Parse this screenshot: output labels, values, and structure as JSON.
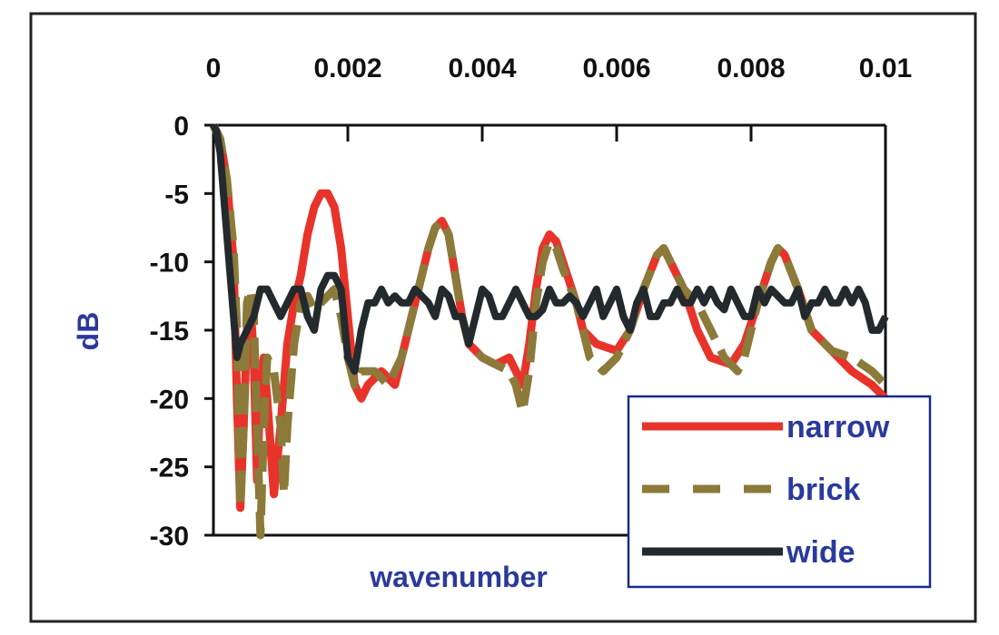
{
  "chart_data": {
    "type": "line",
    "title": "",
    "xlabel": "wavenumber",
    "ylabel": "dB",
    "xlim": [
      0,
      0.01
    ],
    "ylim": [
      -30,
      0
    ],
    "x_ticks": [
      "0",
      "0.002",
      "0.004",
      "0.006",
      "0.008",
      "0.01"
    ],
    "y_ticks": [
      "0",
      "-5",
      "-10",
      "-15",
      "-20",
      "-25",
      "-30"
    ],
    "x_axis_position": "top",
    "grid": false,
    "legend_position": "bottom-right",
    "colors": {
      "narrow": "#e8332a",
      "brick": "#8c7a3a",
      "wide": "#232a2e",
      "text": "#2a3a9c",
      "frame": "#1a2a8c"
    },
    "series": [
      {
        "name": "narrow",
        "style": "solid",
        "points": [
          [
            0,
            0
          ],
          [
            0.0001,
            -1
          ],
          [
            0.0002,
            -4
          ],
          [
            0.0003,
            -10
          ],
          [
            0.00035,
            -20
          ],
          [
            0.0004,
            -28
          ],
          [
            0.00045,
            -22
          ],
          [
            0.0005,
            -15
          ],
          [
            0.00055,
            -13
          ],
          [
            0.0006,
            -17
          ],
          [
            0.00065,
            -26
          ],
          [
            0.0007,
            -19
          ],
          [
            0.00075,
            -17
          ],
          [
            0.0008,
            -20
          ],
          [
            0.0009,
            -27
          ],
          [
            0.001,
            -22
          ],
          [
            0.0011,
            -16
          ],
          [
            0.0012,
            -13
          ],
          [
            0.0013,
            -11
          ],
          [
            0.0014,
            -8
          ],
          [
            0.0015,
            -6
          ],
          [
            0.0016,
            -5
          ],
          [
            0.0017,
            -5
          ],
          [
            0.0018,
            -6
          ],
          [
            0.0019,
            -9
          ],
          [
            0.002,
            -14
          ],
          [
            0.0021,
            -19
          ],
          [
            0.0022,
            -20
          ],
          [
            0.0023,
            -19
          ],
          [
            0.0025,
            -18
          ],
          [
            0.0027,
            -19
          ],
          [
            0.0028,
            -17
          ],
          [
            0.003,
            -13
          ],
          [
            0.0032,
            -9
          ],
          [
            0.0033,
            -7.5
          ],
          [
            0.0034,
            -7
          ],
          [
            0.0035,
            -8
          ],
          [
            0.0036,
            -11
          ],
          [
            0.0037,
            -14
          ],
          [
            0.0038,
            -16
          ],
          [
            0.004,
            -17
          ],
          [
            0.0042,
            -17.5
          ],
          [
            0.0044,
            -17
          ],
          [
            0.0045,
            -18
          ],
          [
            0.0046,
            -19
          ],
          [
            0.0047,
            -16
          ],
          [
            0.0048,
            -12
          ],
          [
            0.0049,
            -9
          ],
          [
            0.005,
            -8
          ],
          [
            0.0051,
            -8.5
          ],
          [
            0.0052,
            -10
          ],
          [
            0.0054,
            -13
          ],
          [
            0.0055,
            -15
          ],
          [
            0.0057,
            -16
          ],
          [
            0.006,
            -16.5
          ],
          [
            0.0062,
            -15
          ],
          [
            0.0064,
            -12
          ],
          [
            0.0066,
            -9.5
          ],
          [
            0.0067,
            -9
          ],
          [
            0.0068,
            -10
          ],
          [
            0.007,
            -12
          ],
          [
            0.0072,
            -15
          ],
          [
            0.0074,
            -17
          ],
          [
            0.0077,
            -17.5
          ],
          [
            0.0079,
            -16
          ],
          [
            0.0081,
            -13
          ],
          [
            0.0083,
            -10
          ],
          [
            0.0084,
            -9
          ],
          [
            0.0085,
            -9.5
          ],
          [
            0.0087,
            -12
          ],
          [
            0.0089,
            -15
          ],
          [
            0.0092,
            -16.5
          ],
          [
            0.0095,
            -18
          ],
          [
            0.0098,
            -19
          ],
          [
            0.01,
            -20
          ]
        ]
      },
      {
        "name": "brick",
        "style": "dashed",
        "points": [
          [
            0,
            0
          ],
          [
            0.0001,
            -1
          ],
          [
            0.0002,
            -4
          ],
          [
            0.0003,
            -9
          ],
          [
            0.00035,
            -15
          ],
          [
            0.0004,
            -28
          ],
          [
            0.00045,
            -22
          ],
          [
            0.0005,
            -13
          ],
          [
            0.00055,
            -12
          ],
          [
            0.0006,
            -14
          ],
          [
            0.00065,
            -22
          ],
          [
            0.0007,
            -30
          ],
          [
            0.00075,
            -22
          ],
          [
            0.0008,
            -17
          ],
          [
            0.0009,
            -18
          ],
          [
            0.001,
            -22
          ],
          [
            0.00105,
            -27
          ],
          [
            0.0011,
            -22
          ],
          [
            0.0012,
            -16
          ],
          [
            0.0013,
            -13
          ],
          [
            0.0014,
            -12.5
          ],
          [
            0.0015,
            -13.5
          ],
          [
            0.0016,
            -13
          ],
          [
            0.0018,
            -12
          ],
          [
            0.0019,
            -14
          ],
          [
            0.002,
            -17
          ],
          [
            0.0021,
            -19
          ],
          [
            0.0022,
            -18
          ],
          [
            0.0024,
            -18
          ],
          [
            0.0026,
            -19
          ],
          [
            0.0028,
            -17
          ],
          [
            0.003,
            -13
          ],
          [
            0.0032,
            -9
          ],
          [
            0.0033,
            -7.5
          ],
          [
            0.0034,
            -7
          ],
          [
            0.0035,
            -8
          ],
          [
            0.0036,
            -11
          ],
          [
            0.0037,
            -14
          ],
          [
            0.0038,
            -16
          ],
          [
            0.004,
            -17
          ],
          [
            0.0042,
            -17.5
          ],
          [
            0.0044,
            -18
          ],
          [
            0.0045,
            -19
          ],
          [
            0.0046,
            -21
          ],
          [
            0.0047,
            -18
          ],
          [
            0.0048,
            -13
          ],
          [
            0.0049,
            -10
          ],
          [
            0.005,
            -8.5
          ],
          [
            0.0051,
            -9
          ],
          [
            0.0052,
            -10.5
          ],
          [
            0.0054,
            -13
          ],
          [
            0.0055,
            -15
          ],
          [
            0.0056,
            -17
          ],
          [
            0.0058,
            -18
          ],
          [
            0.006,
            -17
          ],
          [
            0.0062,
            -15
          ],
          [
            0.0064,
            -12
          ],
          [
            0.0066,
            -9.5
          ],
          [
            0.0067,
            -9
          ],
          [
            0.0068,
            -10
          ],
          [
            0.007,
            -12
          ],
          [
            0.0072,
            -13
          ],
          [
            0.0074,
            -15
          ],
          [
            0.0076,
            -17
          ],
          [
            0.0078,
            -18
          ],
          [
            0.0079,
            -17
          ],
          [
            0.0081,
            -13
          ],
          [
            0.0083,
            -10
          ],
          [
            0.0084,
            -9
          ],
          [
            0.0085,
            -9.5
          ],
          [
            0.0087,
            -12
          ],
          [
            0.0089,
            -15
          ],
          [
            0.0092,
            -16.5
          ],
          [
            0.0095,
            -17
          ],
          [
            0.0098,
            -18
          ],
          [
            0.01,
            -19
          ]
        ]
      },
      {
        "name": "wide",
        "style": "solid",
        "points": [
          [
            0,
            0
          ],
          [
            5e-05,
            -0.5
          ],
          [
            0.0001,
            -2
          ],
          [
            0.00015,
            -5
          ],
          [
            0.0002,
            -8
          ],
          [
            0.00025,
            -11
          ],
          [
            0.0003,
            -14
          ],
          [
            0.00035,
            -17
          ],
          [
            0.0004,
            -16
          ],
          [
            0.0005,
            -15
          ],
          [
            0.0006,
            -14
          ],
          [
            0.0007,
            -12
          ],
          [
            0.0008,
            -12
          ],
          [
            0.0009,
            -13
          ],
          [
            0.001,
            -14
          ],
          [
            0.0011,
            -13
          ],
          [
            0.0012,
            -12
          ],
          [
            0.0013,
            -12
          ],
          [
            0.0014,
            -14
          ],
          [
            0.0015,
            -15
          ],
          [
            0.0016,
            -12
          ],
          [
            0.0017,
            -11
          ],
          [
            0.0018,
            -11
          ],
          [
            0.0019,
            -12
          ],
          [
            0.002,
            -17
          ],
          [
            0.0021,
            -18
          ],
          [
            0.0022,
            -15
          ],
          [
            0.0023,
            -13
          ],
          [
            0.0024,
            -13
          ],
          [
            0.0025,
            -12
          ],
          [
            0.0026,
            -13
          ],
          [
            0.0027,
            -12.5
          ],
          [
            0.0028,
            -13
          ],
          [
            0.0029,
            -13
          ],
          [
            0.003,
            -12
          ],
          [
            0.0031,
            -12.5
          ],
          [
            0.0032,
            -13
          ],
          [
            0.0033,
            -14
          ],
          [
            0.0034,
            -12
          ],
          [
            0.0035,
            -12.5
          ],
          [
            0.0036,
            -14
          ],
          [
            0.0037,
            -14
          ],
          [
            0.0038,
            -16
          ],
          [
            0.0039,
            -14
          ],
          [
            0.004,
            -12
          ],
          [
            0.0041,
            -12.5
          ],
          [
            0.0042,
            -14
          ],
          [
            0.0043,
            -14
          ],
          [
            0.0044,
            -13
          ],
          [
            0.0045,
            -12
          ],
          [
            0.0046,
            -13
          ],
          [
            0.0047,
            -14
          ],
          [
            0.0048,
            -14
          ],
          [
            0.0049,
            -13.5
          ],
          [
            0.005,
            -12
          ],
          [
            0.0051,
            -13
          ],
          [
            0.0052,
            -13
          ],
          [
            0.0053,
            -12.5
          ],
          [
            0.0054,
            -13
          ],
          [
            0.0055,
            -14
          ],
          [
            0.0056,
            -13
          ],
          [
            0.0057,
            -12
          ],
          [
            0.0058,
            -14
          ],
          [
            0.0059,
            -13
          ],
          [
            0.006,
            -12
          ],
          [
            0.0061,
            -14
          ],
          [
            0.0062,
            -15
          ],
          [
            0.0063,
            -13
          ],
          [
            0.0064,
            -12
          ],
          [
            0.0065,
            -14
          ],
          [
            0.0066,
            -14
          ],
          [
            0.0067,
            -13
          ],
          [
            0.0068,
            -13
          ],
          [
            0.0069,
            -12
          ],
          [
            0.007,
            -13
          ],
          [
            0.0071,
            -13
          ],
          [
            0.0072,
            -12
          ],
          [
            0.0073,
            -13
          ],
          [
            0.0074,
            -12
          ],
          [
            0.0075,
            -13
          ],
          [
            0.0076,
            -13.5
          ],
          [
            0.0077,
            -12
          ],
          [
            0.0078,
            -13
          ],
          [
            0.0079,
            -14
          ],
          [
            0.008,
            -14
          ],
          [
            0.0081,
            -12
          ],
          [
            0.0082,
            -13
          ],
          [
            0.0083,
            -12
          ],
          [
            0.0084,
            -12.5
          ],
          [
            0.0085,
            -13
          ],
          [
            0.0086,
            -13
          ],
          [
            0.0087,
            -12
          ],
          [
            0.0088,
            -14
          ],
          [
            0.0089,
            -13
          ],
          [
            0.009,
            -13
          ],
          [
            0.0091,
            -12
          ],
          [
            0.0092,
            -13
          ],
          [
            0.0093,
            -13
          ],
          [
            0.0094,
            -12
          ],
          [
            0.0095,
            -13
          ],
          [
            0.0096,
            -12
          ],
          [
            0.0097,
            -13
          ],
          [
            0.0098,
            -15
          ],
          [
            0.0099,
            -15
          ],
          [
            0.01,
            -14
          ]
        ]
      }
    ]
  }
}
